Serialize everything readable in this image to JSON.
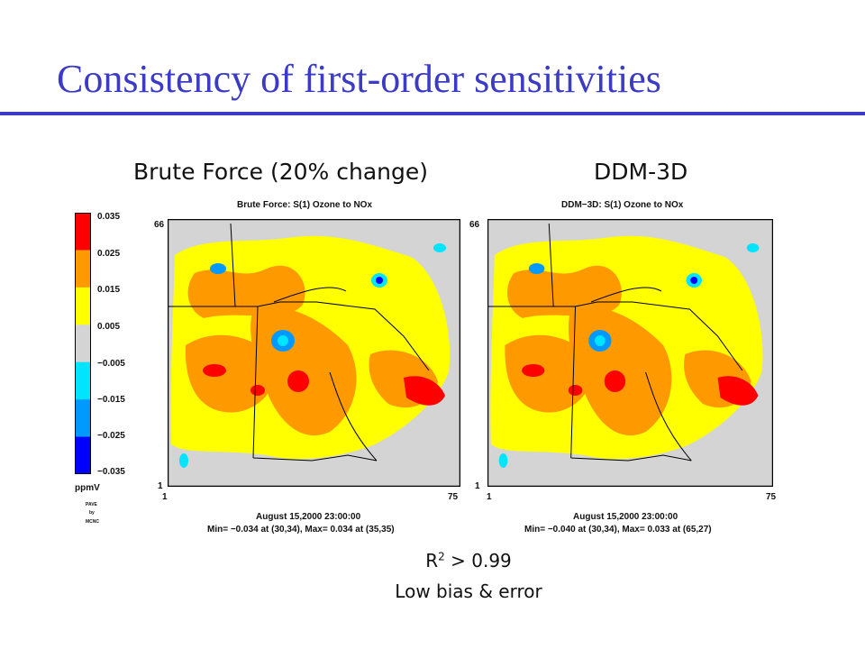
{
  "title": "Consistency of first-order sensitivities",
  "left_panel": {
    "heading": "Brute Force (20% change)",
    "map_title": "Brute Force: S(1) Ozone to NOx",
    "date_line": "August 15,2000 23:00:00",
    "minmax_line": "Min= −0.034 at (30,34), Max=  0.034 at (35,35)"
  },
  "right_panel": {
    "heading": "DDM-3D",
    "map_title": "DDM−3D: S(1) Ozone to NOx",
    "date_line": "August 15,2000 23:00:00",
    "minmax_line": "Min= −0.040 at (30,34), Max=  0.033 at (65,27)"
  },
  "axis": {
    "y_top": "66",
    "y_bottom": "1",
    "x_left": "1",
    "x_right": "75"
  },
  "legend": {
    "ticks": [
      "0.035",
      "0.025",
      "0.015",
      "0.005",
      "−0.005",
      "−0.015",
      "−0.025",
      "−0.035"
    ],
    "unit": "ppmV",
    "credit": [
      "PAVE",
      "by",
      "MCNC"
    ],
    "colors": [
      "#ff0000",
      "#ff9900",
      "#ffff00",
      "#d4d4d4",
      "#00e5ff",
      "#0099ff",
      "#0000ff"
    ]
  },
  "footer": {
    "r_label": "R",
    "r_sup": "2",
    "r_rest": " > 0.99",
    "line2": "Low bias & error"
  }
}
